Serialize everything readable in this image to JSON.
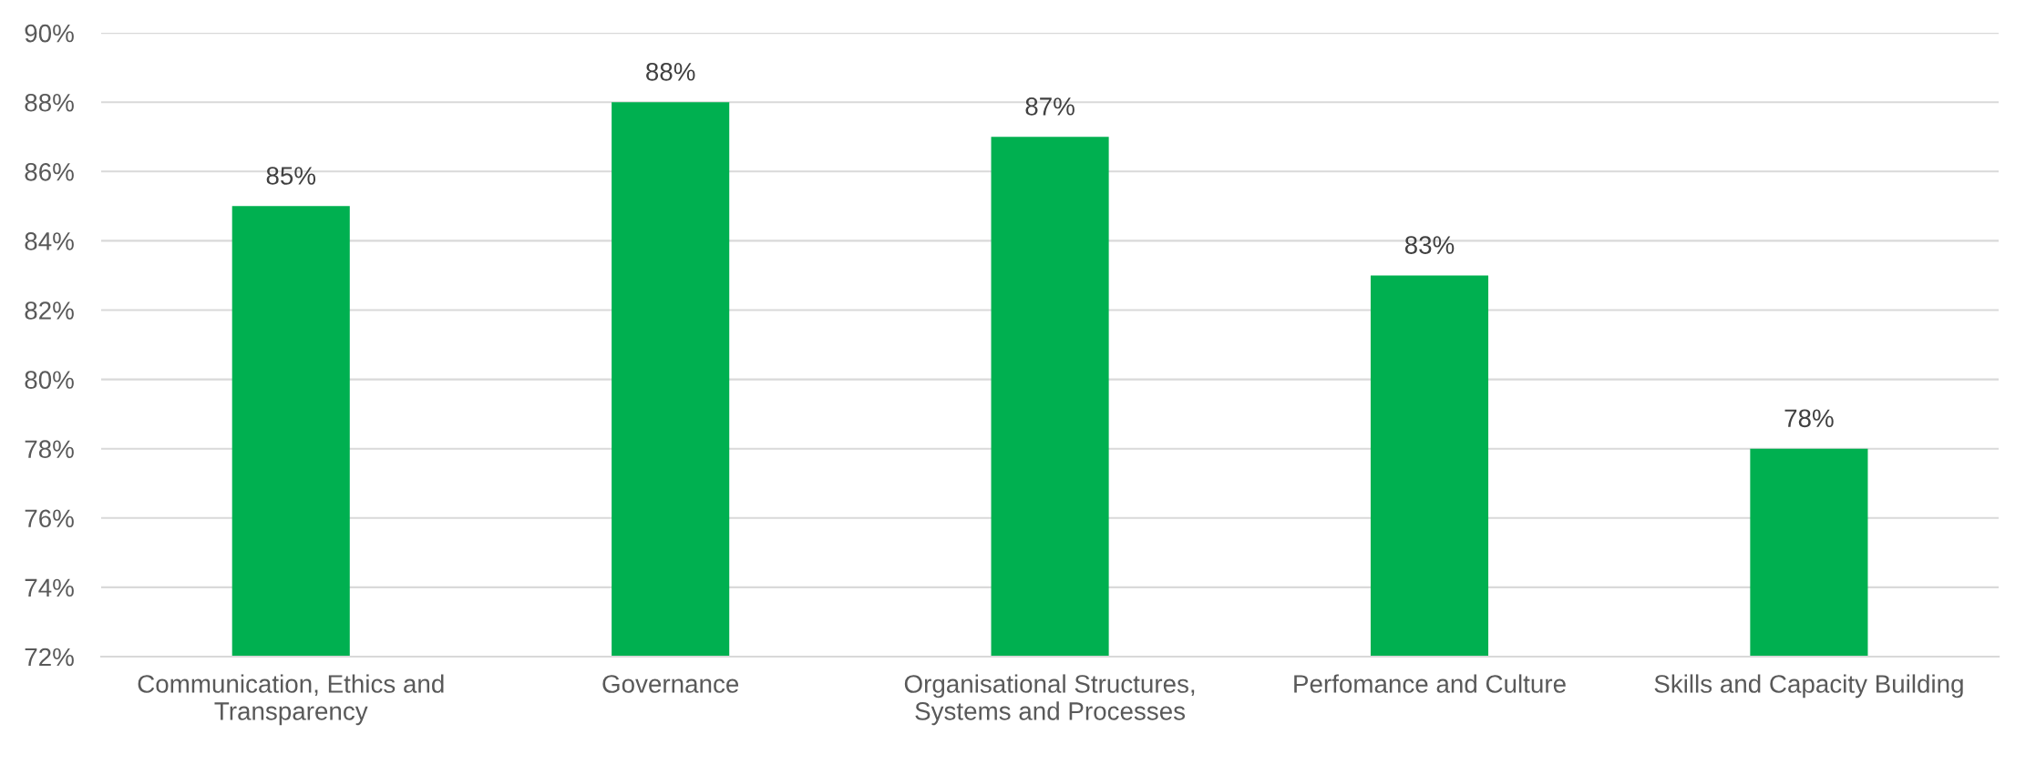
{
  "chart_data": {
    "type": "bar",
    "categories": [
      "Communication, Ethics and Transparency",
      "Governance",
      "Organisational Structures, Systems and Processes",
      "Perfomance and Culture",
      "Skills and Capacity Building"
    ],
    "values": [
      85,
      88,
      87,
      83,
      78
    ],
    "color": "#00b050",
    "ylim": [
      72,
      90
    ],
    "yticks": [
      {
        "value": 72,
        "label": "72%"
      },
      {
        "value": 74,
        "label": "74%"
      },
      {
        "value": 76,
        "label": "76%"
      },
      {
        "value": 78,
        "label": "78%"
      },
      {
        "value": 80,
        "label": "80%"
      },
      {
        "value": 82,
        "label": "82%"
      },
      {
        "value": 84,
        "label": "84%"
      },
      {
        "value": 86,
        "label": "86%"
      },
      {
        "value": 88,
        "label": "88%"
      },
      {
        "value": 90,
        "label": "90%"
      }
    ],
    "grid": "y",
    "value_labels": [
      "85%",
      "88%",
      "87%",
      "83%",
      "78%"
    ]
  }
}
